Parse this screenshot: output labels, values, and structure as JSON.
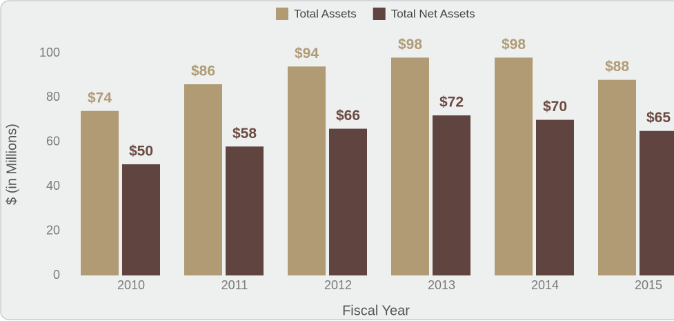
{
  "chart_data": {
    "type": "bar",
    "xlabel": "Fiscal Year",
    "ylabel": "$ (in Millions)",
    "categories": [
      "2010",
      "2011",
      "2012",
      "2013",
      "2014",
      "2015"
    ],
    "series": [
      {
        "name": "Total Assets",
        "color": "#b09b75",
        "label_color": "#b09b75",
        "values": [
          74,
          86,
          94,
          98,
          98,
          88
        ],
        "value_labels": [
          "$74",
          "$86",
          "$94",
          "$98",
          "$98",
          "$88"
        ]
      },
      {
        "name": "Total Net Assets",
        "color": "#5f4440",
        "label_color": "#6b4a42",
        "values": [
          50,
          58,
          66,
          72,
          70,
          65
        ],
        "value_labels": [
          "$50",
          "$58",
          "$66",
          "$72",
          "$70",
          "$65"
        ]
      }
    ],
    "ylim": [
      0,
      100
    ],
    "yticks": [
      0,
      20,
      40,
      60,
      80,
      100
    ],
    "legend": "top",
    "grid": false
  }
}
